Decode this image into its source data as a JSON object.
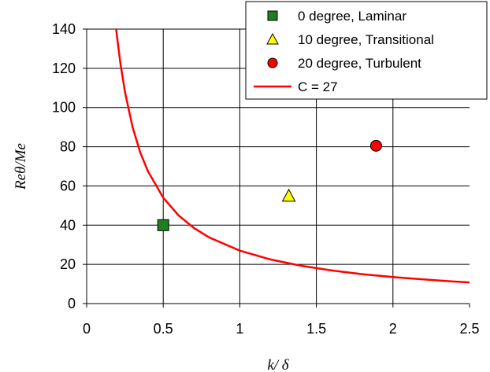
{
  "chart_data": {
    "type": "scatter",
    "xlabel": "k/ δ",
    "ylabel": "Reθ/Me",
    "xlim": [
      0,
      2.5
    ],
    "ylim": [
      0,
      140
    ],
    "x_ticks": [
      "0",
      "0.5",
      "1",
      "1.5",
      "2",
      "2.5"
    ],
    "y_ticks": [
      "0",
      "20",
      "40",
      "60",
      "80",
      "100",
      "120",
      "140"
    ],
    "grid": true,
    "legend_position": "top-right",
    "series": [
      {
        "name": "0 degree, Laminar",
        "marker": "square",
        "color": "#1f7f1f",
        "points": [
          [
            0.5,
            40
          ]
        ]
      },
      {
        "name": "10 degree, Transitional",
        "marker": "triangle",
        "color": "#ffff00",
        "points": [
          [
            1.32,
            55
          ]
        ]
      },
      {
        "name": "20 degree, Turbulent",
        "marker": "circle",
        "color": "#ff0000",
        "points": [
          [
            1.89,
            80.5
          ]
        ]
      },
      {
        "name": "C = 27",
        "marker": "line",
        "color": "#ff0000",
        "points": [
          [
            0.19,
            142
          ],
          [
            0.2,
            135
          ],
          [
            0.22,
            122.7
          ],
          [
            0.25,
            108
          ],
          [
            0.3,
            90
          ],
          [
            0.35,
            77.1
          ],
          [
            0.4,
            67.5
          ],
          [
            0.5,
            54
          ],
          [
            0.6,
            45
          ],
          [
            0.7,
            38.6
          ],
          [
            0.8,
            33.75
          ],
          [
            1.0,
            27
          ],
          [
            1.2,
            22.5
          ],
          [
            1.4,
            19.3
          ],
          [
            1.6,
            16.9
          ],
          [
            1.8,
            15.0
          ],
          [
            2.0,
            13.5
          ],
          [
            2.2,
            12.3
          ],
          [
            2.4,
            11.25
          ],
          [
            2.55,
            10.6
          ]
        ]
      }
    ]
  }
}
